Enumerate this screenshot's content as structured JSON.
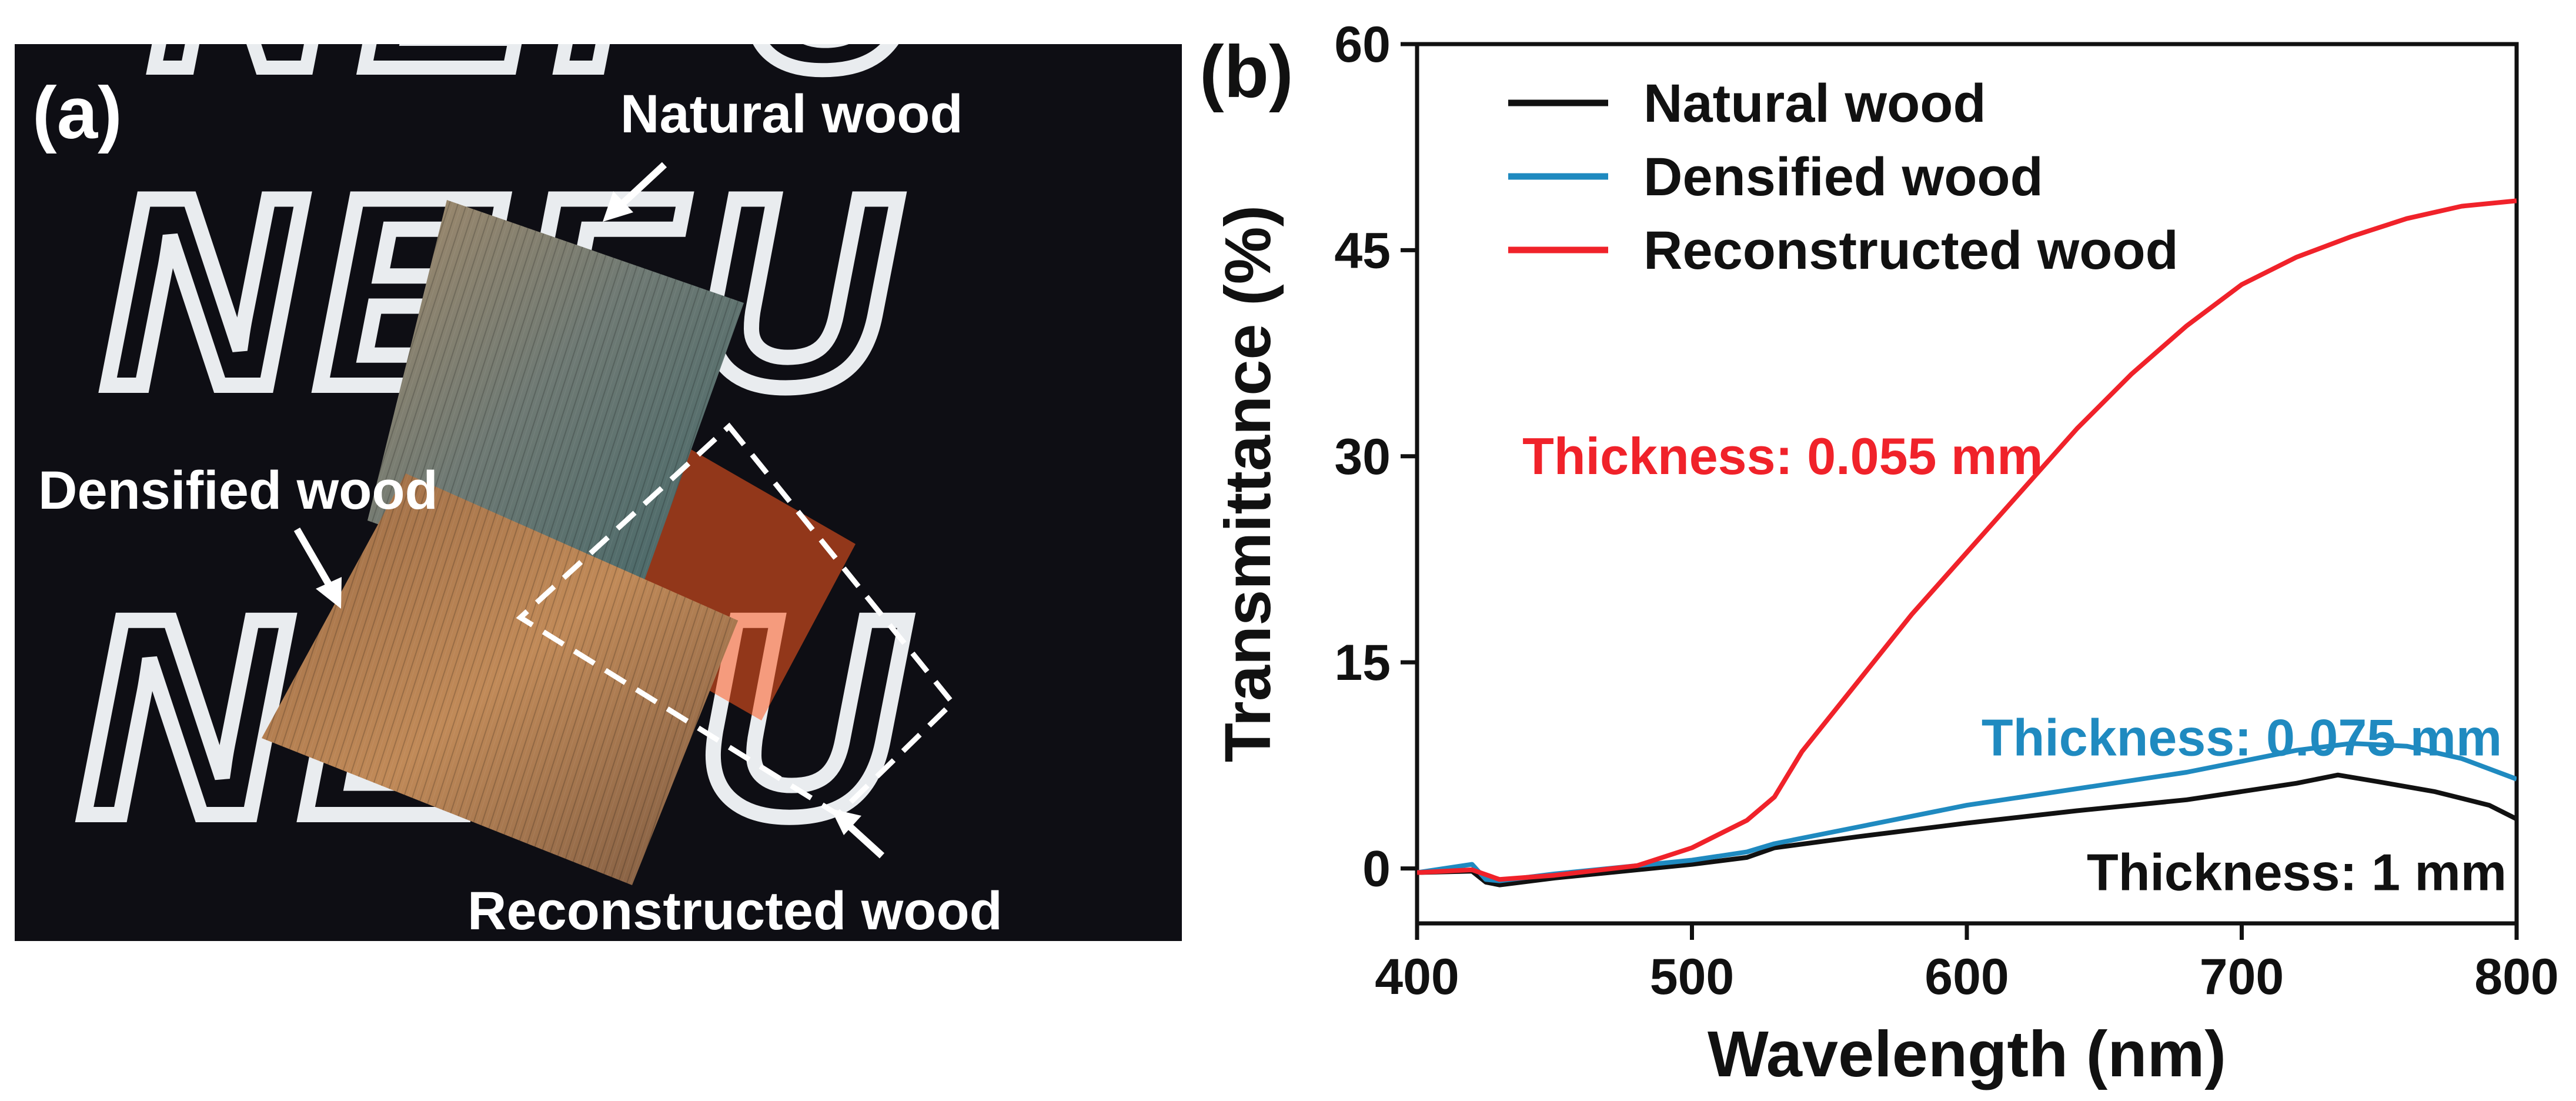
{
  "photo": {
    "panel_label": "(a)",
    "labels": {
      "natural": "Natural wood",
      "densified": "Densified wood",
      "reconstructed": "Reconstructed wood"
    },
    "logo_text": "NEFU",
    "colors": {
      "background": "#0e0e14",
      "logo": "#e9ecef",
      "logo_highlight": "#ff5a1f",
      "arrow": "#ffffff"
    }
  },
  "chart_data": {
    "type": "line",
    "panel_label": "(b)",
    "xlabel": "Wavelength (nm)",
    "ylabel": "Transmittance (%)",
    "xlim": [
      400,
      800
    ],
    "ylim": [
      -4,
      60
    ],
    "xticks": [
      400,
      500,
      600,
      700,
      800
    ],
    "yticks": [
      0,
      15,
      30,
      45,
      60
    ],
    "grid": false,
    "legend_position": "top-left",
    "series": [
      {
        "name": "Natural wood",
        "color": "#111111",
        "x": [
          400,
          420,
          425,
          430,
          450,
          500,
          520,
          530,
          560,
          600,
          640,
          680,
          700,
          720,
          735,
          750,
          770,
          790,
          800
        ],
        "y": [
          -0.3,
          -0.2,
          -1.0,
          -1.2,
          -0.7,
          0.3,
          0.8,
          1.5,
          2.3,
          3.3,
          4.2,
          5.0,
          5.6,
          6.2,
          6.8,
          6.3,
          5.6,
          4.6,
          3.6
        ]
      },
      {
        "name": "Densified wood",
        "color": "#1f8ac0",
        "x": [
          400,
          420,
          425,
          430,
          450,
          500,
          520,
          530,
          560,
          600,
          640,
          680,
          700,
          720,
          740,
          760,
          780,
          800
        ],
        "y": [
          -0.3,
          0.3,
          -0.8,
          -0.9,
          -0.4,
          0.6,
          1.2,
          1.8,
          3.0,
          4.6,
          5.8,
          7.0,
          7.8,
          8.6,
          9.1,
          8.9,
          8.0,
          6.5
        ]
      },
      {
        "name": "Reconstructed wood",
        "color": "#f0222a",
        "x": [
          400,
          420,
          430,
          450,
          480,
          500,
          520,
          530,
          540,
          560,
          580,
          600,
          620,
          640,
          660,
          680,
          700,
          720,
          740,
          760,
          780,
          800
        ],
        "y": [
          -0.3,
          -0.1,
          -0.8,
          -0.5,
          0.2,
          1.5,
          3.5,
          5.2,
          8.5,
          13.5,
          18.5,
          23.0,
          27.5,
          32.0,
          36.0,
          39.5,
          42.5,
          44.5,
          46.0,
          47.3,
          48.2,
          48.6
        ]
      }
    ],
    "annotations": [
      {
        "text": "Thickness: 0.055 mm",
        "color": "#f0222a",
        "x": 533,
        "y": 30
      },
      {
        "text": "Thickness: 0.075 mm",
        "color": "#1f8ac0",
        "x": 700,
        "y": 9.5
      },
      {
        "text": "Thickness: 1 mm",
        "color": "#111111",
        "x": 720,
        "y": -0.3
      }
    ]
  }
}
